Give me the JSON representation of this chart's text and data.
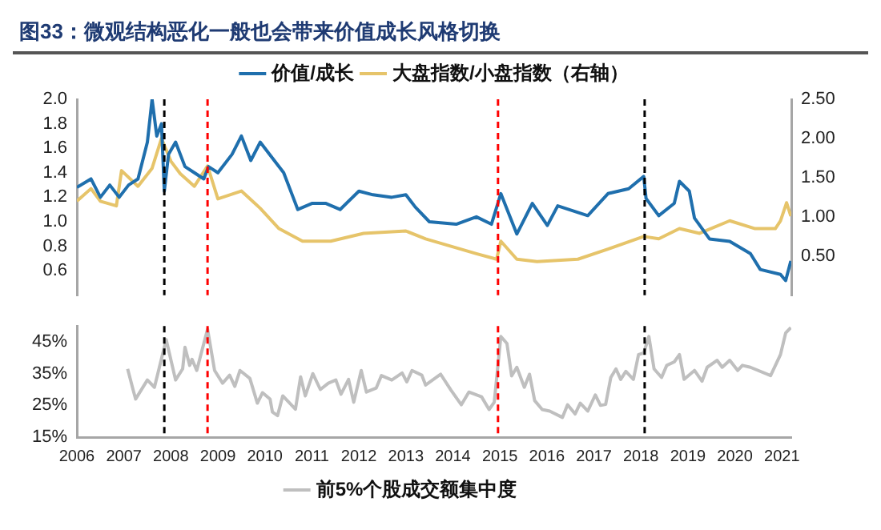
{
  "chart_data": [
    {
      "type": "line",
      "title": "图33：微观结构恶化一般也会带来价值成长风格切换",
      "legend": "top",
      "tick_labels": "y",
      "grid": false,
      "xlim": [
        2006,
        2021.2
      ],
      "xticks": [
        2006,
        2007,
        2008,
        2009,
        2010,
        2011,
        2012,
        2013,
        2014,
        2015,
        2016,
        2017,
        2018,
        2019,
        2020,
        2021
      ],
      "ylim": [
        0.4,
        2.0
      ],
      "yticks": [
        {
          "value": 0.6,
          "label": "0.6"
        },
        {
          "value": 0.8,
          "label": "0.8"
        },
        {
          "value": 1.0,
          "label": "1.0"
        },
        {
          "value": 1.2,
          "label": "1.2"
        },
        {
          "value": 1.4,
          "label": "1.4"
        },
        {
          "value": 1.6,
          "label": "1.6"
        },
        {
          "value": 1.8,
          "label": "1.8"
        },
        {
          "value": 2.0,
          "label": "2.0"
        }
      ],
      "y2lim": [
        0,
        2.5
      ],
      "y2ticks": [
        {
          "value": 0.5,
          "label": "0.50"
        },
        {
          "value": 1.0,
          "label": "1.00"
        },
        {
          "value": 1.5,
          "label": "1.50"
        },
        {
          "value": 2.0,
          "label": "2.00"
        },
        {
          "value": 2.5,
          "label": "2.50"
        }
      ],
      "series": [
        {
          "name": "价值/成长",
          "color": "#1f6fad",
          "x": [
            2006.0,
            2006.3,
            2006.5,
            2006.7,
            2006.9,
            2007.1,
            2007.3,
            2007.5,
            2007.6,
            2007.7,
            2007.8,
            2007.86,
            2007.95,
            2008.1,
            2008.3,
            2008.5,
            2008.7,
            2008.8,
            2009.0,
            2009.3,
            2009.5,
            2009.7,
            2009.9,
            2010.2,
            2010.4,
            2010.6,
            2010.7,
            2011.0,
            2011.3,
            2011.6,
            2012.0,
            2012.3,
            2012.7,
            2013.0,
            2013.2,
            2013.5,
            2014.07,
            2014.5,
            2014.82,
            2015.02,
            2015.36,
            2015.69,
            2016.01,
            2016.23,
            2016.87,
            2017.3,
            2017.74,
            2018.06,
            2018.11,
            2018.38,
            2018.71,
            2018.82,
            2019.03,
            2019.14,
            2019.46,
            2019.89,
            2020.33,
            2020.54,
            2020.97,
            2021.08,
            2021.19
          ],
          "values": [
            1.28,
            1.35,
            1.2,
            1.3,
            1.2,
            1.3,
            1.35,
            1.65,
            2.0,
            1.7,
            1.8,
            1.25,
            1.55,
            1.65,
            1.45,
            1.4,
            1.35,
            1.45,
            1.4,
            1.55,
            1.7,
            1.5,
            1.65,
            1.5,
            1.4,
            1.2,
            1.1,
            1.15,
            1.15,
            1.1,
            1.25,
            1.22,
            1.2,
            1.22,
            1.12,
            1.0,
            0.98,
            1.04,
            0.98,
            1.23,
            0.9,
            1.15,
            0.97,
            1.13,
            1.05,
            1.23,
            1.27,
            1.37,
            1.19,
            1.05,
            1.15,
            1.33,
            1.25,
            1.03,
            0.86,
            0.84,
            0.74,
            0.61,
            0.57,
            0.52,
            0.68
          ]
        },
        {
          "name": "大盘指数/小盘指数（右轴）",
          "color": "#e6c46a",
          "axis": "y2",
          "x": [
            2006.0,
            2006.3,
            2006.5,
            2006.84,
            2006.95,
            2007.3,
            2007.6,
            2007.8,
            2008.0,
            2008.2,
            2008.5,
            2008.78,
            2009.0,
            2009.5,
            2009.9,
            2010.3,
            2010.8,
            2011.4,
            2012.1,
            2013.0,
            2013.42,
            2014.5,
            2014.93,
            2015.02,
            2015.36,
            2015.79,
            2016.66,
            2017.3,
            2018.06,
            2018.38,
            2018.82,
            2019.25,
            2019.89,
            2020.43,
            2020.86,
            2020.97,
            2021.1,
            2021.19
          ],
          "values": [
            1.2,
            1.36,
            1.2,
            1.14,
            1.59,
            1.39,
            1.62,
            2.0,
            1.71,
            1.55,
            1.39,
            1.65,
            1.23,
            1.33,
            1.11,
            0.85,
            0.69,
            0.69,
            0.79,
            0.82,
            0.72,
            0.53,
            0.46,
            0.69,
            0.46,
            0.43,
            0.46,
            0.59,
            0.75,
            0.72,
            0.85,
            0.79,
            0.95,
            0.85,
            0.85,
            0.95,
            1.18,
            1.01
          ]
        }
      ],
      "ref_lines": [
        {
          "axis": "x",
          "value": 2007.86,
          "color": "#000000",
          "line_style": "dashed"
        },
        {
          "axis": "x",
          "value": 2008.78,
          "color": "#ff0000",
          "line_style": "dashed"
        },
        {
          "axis": "x",
          "value": 2014.96,
          "color": "#ff0000",
          "line_style": "dashed"
        },
        {
          "axis": "x",
          "value": 2018.08,
          "color": "#000000",
          "line_style": "dashed"
        }
      ]
    },
    {
      "type": "line",
      "legend": "bottom",
      "grid": false,
      "xlim": [
        2006,
        2021.2
      ],
      "xticks": [
        2006,
        2007,
        2008,
        2009,
        2010,
        2011,
        2012,
        2013,
        2014,
        2015,
        2016,
        2017,
        2018,
        2019,
        2020,
        2021
      ],
      "ylim": [
        15,
        50
      ],
      "yticks": [
        {
          "value": 15,
          "label": "15%"
        },
        {
          "value": 25,
          "label": "25%"
        },
        {
          "value": 35,
          "label": "35%"
        },
        {
          "value": 45,
          "label": "45%"
        }
      ],
      "series": [
        {
          "name": "前5%个股成交额集中度",
          "color": "#bfbfbf",
          "x": [
            2007.08,
            2007.2,
            2007.25,
            2007.5,
            2007.65,
            2007.9,
            2008.1,
            2008.25,
            2008.3,
            2008.4,
            2008.45,
            2008.55,
            2008.78,
            2008.93,
            2009.1,
            2009.25,
            2009.36,
            2009.47,
            2009.68,
            2009.84,
            2009.95,
            2010.11,
            2010.16,
            2010.27,
            2010.38,
            2010.65,
            2010.76,
            2010.86,
            2011.02,
            2011.18,
            2011.35,
            2011.51,
            2011.62,
            2011.78,
            2011.89,
            2012.05,
            2012.16,
            2012.37,
            2012.48,
            2012.7,
            2012.92,
            2013.02,
            2013.13,
            2013.34,
            2013.42,
            2013.74,
            2013.96,
            2014.18,
            2014.34,
            2014.61,
            2014.77,
            2014.88,
            2015.02,
            2015.15,
            2015.25,
            2015.36,
            2015.52,
            2015.63,
            2015.74,
            2015.9,
            2016.06,
            2016.33,
            2016.44,
            2016.6,
            2016.71,
            2016.87,
            2017.03,
            2017.14,
            2017.25,
            2017.36,
            2017.47,
            2017.57,
            2017.68,
            2017.84,
            2017.95,
            2018.06,
            2018.17,
            2018.28,
            2018.44,
            2018.55,
            2018.71,
            2018.82,
            2018.92,
            2019.14,
            2019.3,
            2019.41,
            2019.62,
            2019.73,
            2019.89,
            2020.06,
            2020.16,
            2020.33,
            2020.76,
            2020.97,
            2021.08,
            2021.19
          ],
          "values": [
            36.5,
            29.7,
            27,
            33,
            30.7,
            45.7,
            33,
            36.5,
            43.3,
            37.6,
            39.5,
            36,
            49,
            36,
            32,
            34.5,
            31,
            36,
            33.5,
            25.7,
            29,
            27,
            22.9,
            21.8,
            28,
            23.8,
            34,
            28,
            35,
            30,
            32,
            33,
            28.5,
            33.2,
            26,
            36,
            29.2,
            30.5,
            34.4,
            33,
            35.2,
            32.4,
            36,
            34.5,
            31.4,
            34.8,
            29.8,
            25.2,
            29.2,
            27.7,
            23.7,
            26,
            46.7,
            44.5,
            34.3,
            37,
            30.7,
            34.8,
            26.5,
            23.7,
            23.2,
            21.2,
            25.2,
            22.3,
            25.7,
            23.2,
            28.3,
            25,
            25.3,
            33.8,
            36.5,
            33.2,
            35.7,
            33.2,
            41,
            41.5,
            46.7,
            36.5,
            33.8,
            37.6,
            38.7,
            41,
            33.2,
            36,
            32.6,
            37,
            39.2,
            37,
            39.2,
            36,
            37.6,
            37,
            34.4,
            41,
            47.8,
            49.5
          ]
        }
      ],
      "ref_lines": [
        {
          "axis": "x",
          "value": 2007.86,
          "color": "#000000",
          "line_style": "dashed"
        },
        {
          "axis": "x",
          "value": 2008.78,
          "color": "#ff0000",
          "line_style": "dashed"
        },
        {
          "axis": "x",
          "value": 2014.96,
          "color": "#ff0000",
          "line_style": "dashed"
        },
        {
          "axis": "x",
          "value": 2018.08,
          "color": "#000000",
          "line_style": "dashed"
        }
      ]
    }
  ]
}
